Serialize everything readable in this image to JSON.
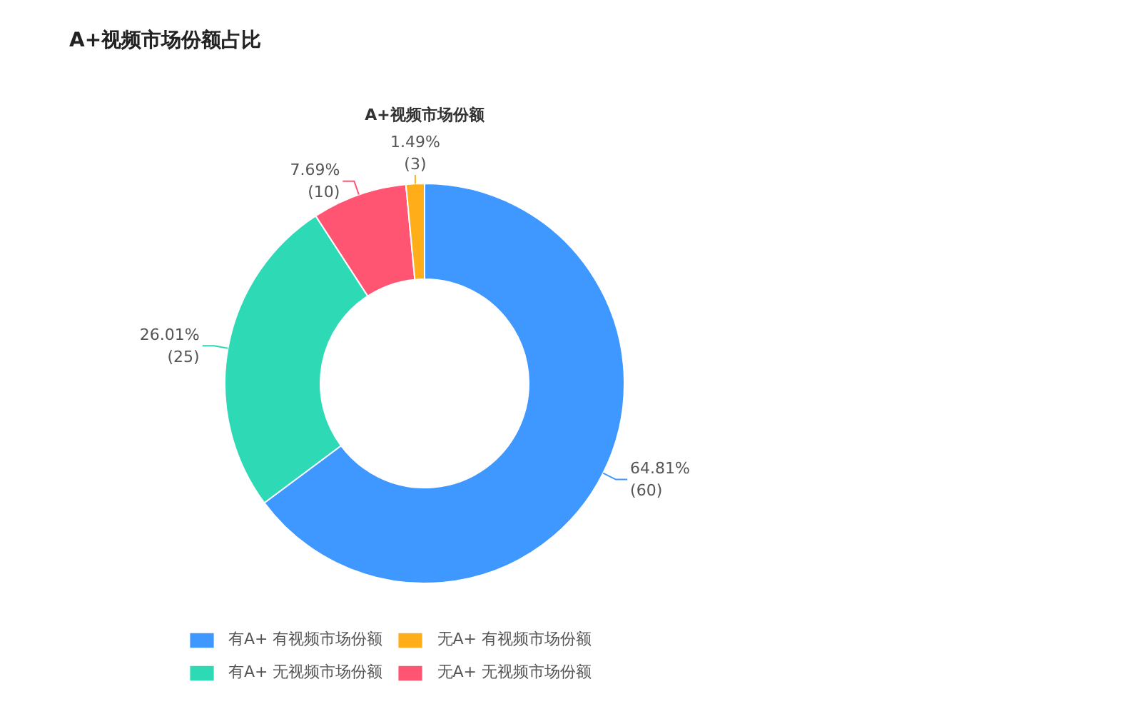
{
  "chart_data": {
    "type": "donut",
    "title": "A+视频市场份额占比",
    "subtitle": "A+视频市场份额",
    "categories": [
      "有A+ 有视频市场份额",
      "有A+ 无视频市场份额",
      "无A+ 无视频市场份额",
      "无A+ 有视频市场份额"
    ],
    "values": [
      64.81,
      26.01,
      7.69,
      1.49
    ],
    "colors": [
      "#3e98ff",
      "#2ed9b6",
      "#ff5573",
      "#ffae1a"
    ],
    "value_labels": [
      "64.81%\n(60)",
      "26.01%\n(25)",
      "7.69%\n(10)",
      "1.49%\n(3)"
    ],
    "legend": "bottom"
  }
}
